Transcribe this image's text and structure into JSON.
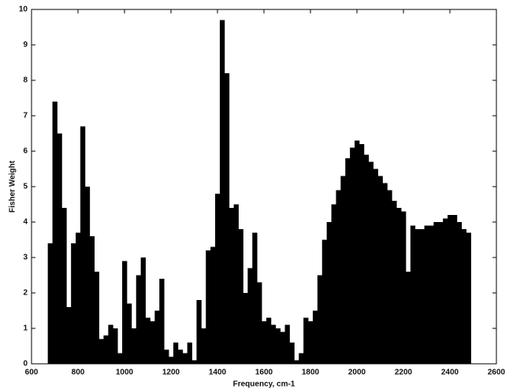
{
  "chart_data": {
    "type": "bar",
    "xlabel": "Frequency, cm-1",
    "ylabel": "Fisher Weight",
    "color": "#000000",
    "xlim": [
      600,
      2600
    ],
    "xticks": [
      600,
      800,
      1000,
      1200,
      1400,
      1600,
      1800,
      2000,
      2200,
      2400,
      2600
    ],
    "ylim": [
      0,
      10
    ],
    "yticks": [
      0,
      1,
      2,
      3,
      4,
      5,
      6,
      7,
      8,
      9,
      10
    ],
    "x": [
      680,
      700,
      720,
      740,
      760,
      780,
      800,
      820,
      840,
      860,
      880,
      900,
      920,
      940,
      960,
      980,
      1000,
      1020,
      1040,
      1060,
      1080,
      1100,
      1120,
      1140,
      1160,
      1180,
      1200,
      1220,
      1240,
      1260,
      1280,
      1300,
      1320,
      1340,
      1360,
      1380,
      1400,
      1420,
      1440,
      1460,
      1480,
      1500,
      1520,
      1540,
      1560,
      1580,
      1600,
      1620,
      1640,
      1660,
      1680,
      1700,
      1720,
      1740,
      1760,
      1780,
      1800,
      1820,
      1840,
      1860,
      1880,
      1900,
      1920,
      1940,
      1960,
      1980,
      2000,
      2020,
      2040,
      2060,
      2080,
      2100,
      2120,
      2140,
      2160,
      2180,
      2200,
      2220,
      2240,
      2260,
      2280,
      2300,
      2320,
      2340,
      2360,
      2380,
      2400,
      2420,
      2440,
      2460,
      2480
    ],
    "values": [
      3.4,
      7.4,
      6.5,
      4.4,
      1.6,
      3.4,
      3.7,
      6.7,
      5.0,
      3.6,
      2.6,
      0.7,
      0.8,
      1.1,
      1.0,
      0.3,
      2.9,
      1.7,
      1.0,
      2.5,
      3.0,
      1.3,
      1.2,
      1.5,
      2.4,
      0.4,
      0.2,
      0.6,
      0.4,
      0.3,
      0.6,
      0.1,
      1.8,
      1.0,
      3.2,
      3.3,
      4.8,
      9.7,
      8.2,
      4.4,
      4.5,
      3.8,
      2.0,
      2.7,
      3.7,
      2.3,
      1.2,
      1.3,
      1.1,
      1.0,
      0.9,
      1.1,
      0.6,
      0.1,
      0.3,
      1.3,
      1.2,
      1.5,
      2.5,
      3.5,
      4.0,
      4.5,
      4.9,
      5.3,
      5.8,
      6.1,
      6.3,
      6.2,
      5.9,
      5.7,
      5.5,
      5.3,
      5.1,
      4.9,
      4.6,
      4.4,
      4.3,
      2.6,
      3.9,
      3.8,
      3.8,
      3.9,
      3.9,
      4.0,
      4.0,
      4.1,
      4.2,
      4.2,
      4.0,
      3.8,
      3.7
    ]
  }
}
